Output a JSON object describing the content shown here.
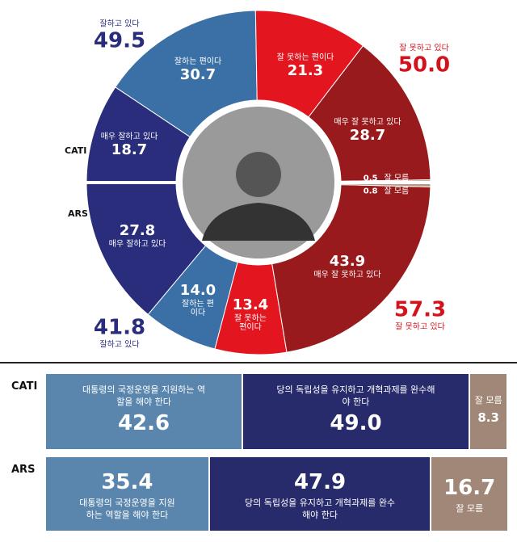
{
  "chart_data": [
    {
      "type": "donut",
      "categories": [
        "매우 잘하고 있다",
        "잘하는 편이다",
        "잘 못하는 편이다",
        "매우 잘 못하고 있다",
        "잘 모름"
      ],
      "colors": [
        "#2a2d7c",
        "#3a70a6",
        "#e3161f",
        "#981a1c",
        "#b79a82"
      ],
      "total_names": [
        "잘하고 있다",
        "잘 못하고 있다"
      ],
      "total_colors": [
        "#2a2d7c",
        "#d3121b"
      ],
      "series": [
        {
          "name": "CATI",
          "values": [
            18.7,
            30.7,
            21.3,
            28.7,
            0.5
          ],
          "value_labels": [
            "18.7",
            "30.7",
            "21.3",
            "28.7",
            "0.5"
          ],
          "totals": [
            49.5,
            50
          ],
          "total_labels": [
            "49.5",
            "50.0"
          ]
        },
        {
          "name": "ARS",
          "values": [
            27.8,
            14,
            13.4,
            43.9,
            0.8
          ],
          "value_labels": [
            "27.8",
            "14.0",
            "13.4",
            "43.9",
            "0.8"
          ],
          "totals": [
            41.8,
            57.3
          ],
          "total_labels": [
            "41.8",
            "57.3"
          ]
        }
      ]
    },
    {
      "type": "stacked-bar",
      "categories": [
        "CATI",
        "ARS"
      ],
      "series": [
        {
          "name": "대통령의 국정운영을 지원하는 역할을 해야 한다",
          "color": "#5a86ae",
          "values": [
            42.6,
            35.4
          ],
          "value_labels": [
            "42.6",
            "35.4"
          ]
        },
        {
          "name": "당의 독립성을 유지하고 개혁과제를 완수해야 한다",
          "color": "#282b6b",
          "values": [
            49,
            47.9
          ],
          "value_labels": [
            "49.0",
            "47.9"
          ]
        },
        {
          "name": "잘 모름",
          "color": "#a18777",
          "values": [
            8.3,
            16.7
          ],
          "value_labels": [
            "8.3",
            "16.7"
          ]
        }
      ]
    }
  ]
}
